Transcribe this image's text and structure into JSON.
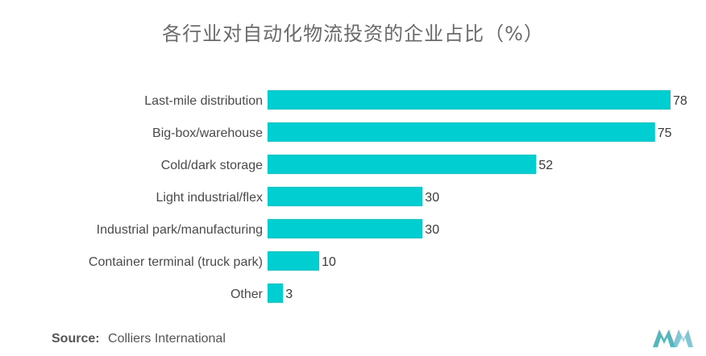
{
  "title": "各行业对自动化物流投资的企业占比（%）",
  "source": {
    "label": "Source:",
    "text": "Colliers International"
  },
  "colors": {
    "bar": "#00CED1"
  },
  "chart_data": {
    "type": "bar",
    "orientation": "horizontal",
    "title": "各行业对自动化物流投资的企业占比（%）",
    "categories": [
      "Last-mile distribution",
      "Big-box/warehouse",
      "Cold/dark storage",
      "Light industrial/flex",
      "Industrial park/manufacturing",
      "Container terminal (truck park)",
      "Other"
    ],
    "values": [
      78,
      75,
      52,
      30,
      30,
      10,
      3
    ],
    "xlim": [
      0,
      78
    ],
    "grid": false,
    "legend": "none"
  }
}
